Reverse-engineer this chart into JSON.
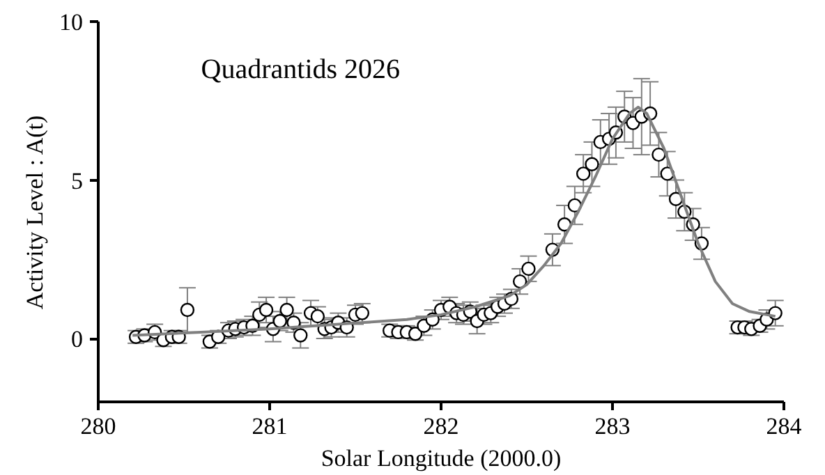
{
  "chart_data": {
    "type": "scatter",
    "title": "Quadrantids 2026",
    "xlabel": "Solar Longitude (2000.0)",
    "ylabel": "Activity Level : A(t)",
    "xlim": [
      280,
      284
    ],
    "ylim": [
      -2,
      10
    ],
    "xticks": [
      280,
      281,
      282,
      283,
      284
    ],
    "yticks": [
      0,
      5,
      10
    ],
    "grid": false,
    "series": [
      {
        "color": "#ffffff",
        "marker": "circle",
        "x": [
          280.22,
          280.27,
          280.33,
          280.38,
          280.43,
          280.47,
          280.52,
          280.65,
          280.7,
          280.76,
          280.8,
          280.85,
          280.9,
          280.94,
          280.98,
          281.02,
          281.06,
          281.1,
          281.14,
          281.18,
          281.24,
          281.28,
          281.32,
          281.36,
          281.4,
          281.45,
          281.5,
          281.54,
          281.7,
          281.75,
          281.8,
          281.85,
          281.9,
          281.95,
          282.0,
          282.05,
          282.09,
          282.13,
          282.17,
          282.21,
          282.25,
          282.29,
          282.33,
          282.37,
          282.41,
          282.46,
          282.51,
          282.65,
          282.72,
          282.78,
          282.83,
          282.88,
          282.93,
          282.98,
          283.02,
          283.07,
          283.12,
          283.17,
          283.22,
          283.27,
          283.32,
          283.37,
          283.42,
          283.47,
          283.52,
          283.73,
          283.77,
          283.81,
          283.86,
          283.9,
          283.95
        ],
        "values": [
          0.05,
          0.1,
          0.2,
          -0.05,
          0.05,
          0.05,
          0.9,
          -0.1,
          0.05,
          0.25,
          0.3,
          0.35,
          0.4,
          0.75,
          0.9,
          0.3,
          0.55,
          0.9,
          0.5,
          0.1,
          0.8,
          0.7,
          0.3,
          0.35,
          0.5,
          0.35,
          0.75,
          0.8,
          0.25,
          0.2,
          0.2,
          0.15,
          0.4,
          0.6,
          0.9,
          1.0,
          0.8,
          0.75,
          0.85,
          0.55,
          0.75,
          0.8,
          1.0,
          1.1,
          1.25,
          1.8,
          2.2,
          2.8,
          3.6,
          4.2,
          5.2,
          5.5,
          6.2,
          6.3,
          6.5,
          7.0,
          6.8,
          7.0,
          7.1,
          5.8,
          5.2,
          4.4,
          4.0,
          3.6,
          3.0,
          0.35,
          0.35,
          0.3,
          0.4,
          0.6,
          0.8
        ],
        "errors": [
          0.2,
          0.2,
          0.25,
          0.2,
          0.2,
          0.2,
          0.7,
          0.2,
          0.2,
          0.25,
          0.25,
          0.25,
          0.3,
          0.4,
          0.4,
          0.4,
          0.3,
          0.4,
          0.3,
          0.4,
          0.4,
          0.3,
          0.3,
          0.3,
          0.3,
          0.3,
          0.3,
          0.3,
          0.2,
          0.2,
          0.2,
          0.2,
          0.3,
          0.3,
          0.3,
          0.3,
          0.3,
          0.3,
          0.3,
          0.4,
          0.3,
          0.3,
          0.3,
          0.3,
          0.3,
          0.4,
          0.4,
          0.5,
          0.6,
          0.6,
          0.6,
          0.7,
          0.7,
          0.8,
          0.8,
          0.8,
          0.8,
          1.2,
          1.0,
          0.7,
          0.7,
          0.6,
          0.6,
          0.5,
          0.5,
          0.2,
          0.2,
          0.2,
          0.2,
          0.3,
          0.4
        ]
      },
      {
        "type": "line",
        "color": "#808080",
        "x": [
          280.2,
          280.6,
          281.0,
          281.4,
          281.8,
          282.0,
          282.2,
          282.4,
          282.5,
          282.6,
          282.7,
          282.8,
          282.9,
          283.0,
          283.1,
          283.15,
          283.2,
          283.3,
          283.4,
          283.5,
          283.6,
          283.7,
          283.8,
          283.95
        ],
        "values": [
          0.1,
          0.2,
          0.3,
          0.45,
          0.6,
          0.75,
          1.0,
          1.35,
          1.7,
          2.3,
          3.0,
          4.0,
          5.1,
          6.3,
          7.1,
          7.3,
          7.1,
          6.0,
          4.5,
          3.0,
          1.8,
          1.1,
          0.85,
          0.7
        ]
      }
    ]
  }
}
